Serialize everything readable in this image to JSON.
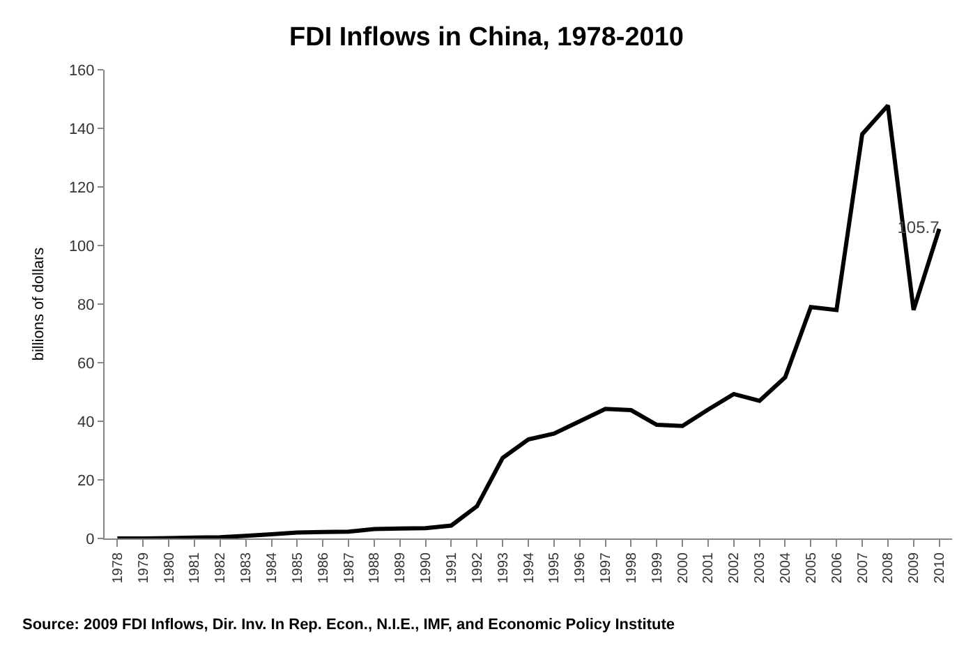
{
  "chart_data": {
    "type": "line",
    "title": "FDI Inflows in China, 1978-2010",
    "ylabel": "billions of dollars",
    "categories": [
      "1978",
      "1979",
      "1980",
      "1981",
      "1982",
      "1983",
      "1984",
      "1985",
      "1986",
      "1987",
      "1988",
      "1989",
      "1990",
      "1991",
      "1992",
      "1993",
      "1994",
      "1995",
      "1996",
      "1997",
      "1998",
      "1999",
      "2000",
      "2001",
      "2002",
      "2003",
      "2004",
      "2005",
      "2006",
      "2007",
      "2008",
      "2009",
      "2010"
    ],
    "series": [
      {
        "color": "#000000",
        "values": [
          0,
          0,
          0.1,
          0.3,
          0.4,
          0.9,
          1.4,
          2.0,
          2.2,
          2.3,
          3.2,
          3.4,
          3.5,
          4.4,
          11,
          27.5,
          33.8,
          35.8,
          40,
          44.2,
          43.8,
          38.8,
          38.4,
          44,
          49.3,
          47,
          55,
          79,
          78,
          138,
          147.8,
          78,
          105.7
        ],
        "value_labels": [
          null,
          null,
          null,
          null,
          null,
          null,
          null,
          null,
          null,
          null,
          null,
          null,
          null,
          null,
          null,
          null,
          null,
          null,
          null,
          null,
          null,
          null,
          null,
          null,
          null,
          null,
          null,
          null,
          null,
          null,
          null,
          null,
          "105.7"
        ]
      }
    ],
    "ylim": [
      0,
      160
    ],
    "yticks": [
      0,
      20,
      40,
      60,
      80,
      100,
      120,
      140,
      160
    ],
    "marker": "none",
    "line_style": "solid",
    "annotations": [
      "Source: 2009 FDI Inflows, Dir. Inv. In Rep. Econ., N.I.E., IMF, and Economic Policy Institute"
    ]
  }
}
